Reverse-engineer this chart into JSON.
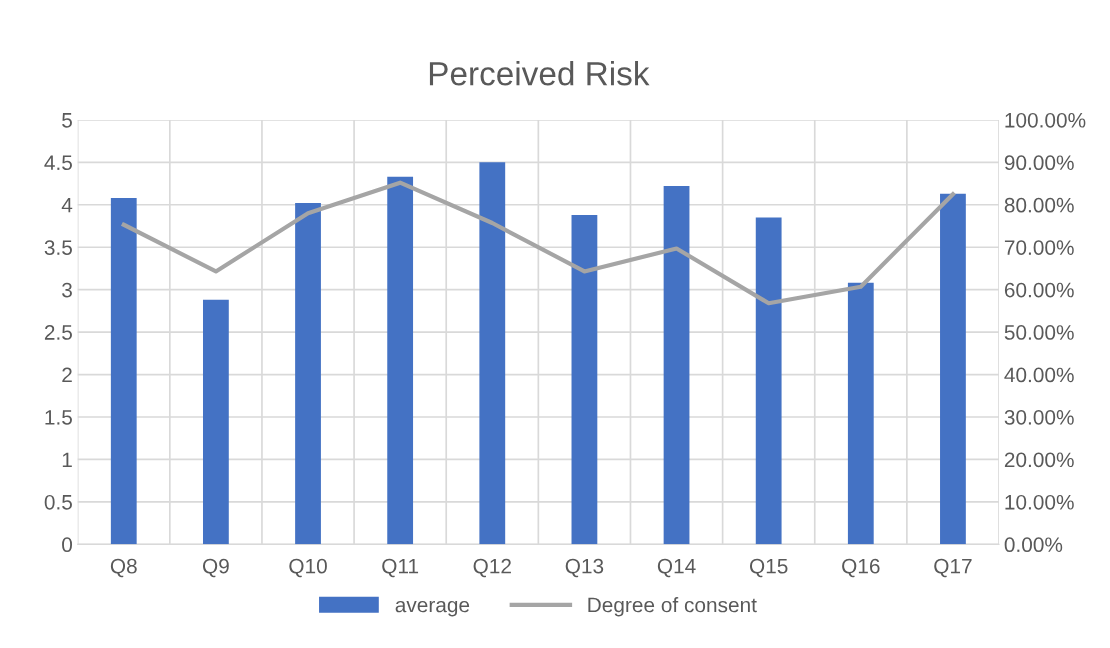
{
  "chart_data": {
    "type": "bar",
    "title": "Perceived Risk",
    "categories": [
      "Q8",
      "Q9",
      "Q10",
      "Q11",
      "Q12",
      "Q13",
      "Q14",
      "Q15",
      "Q16",
      "Q17"
    ],
    "series": [
      {
        "name": "average",
        "color": "#4472c4",
        "values": [
          4.08,
          2.88,
          4.02,
          4.33,
          4.5,
          3.88,
          4.22,
          3.85,
          3.08,
          4.13
        ]
      },
      {
        "name": "Degree of consent",
        "type": "line",
        "axis": "y2",
        "color": "#a5a5a5",
        "values": [
          0.753,
          0.643,
          0.78,
          0.852,
          0.757,
          0.643,
          0.697,
          0.568,
          0.607,
          0.825
        ]
      }
    ],
    "ylim": [
      0,
      5
    ],
    "yticks": [
      0,
      0.5,
      1,
      1.5,
      2,
      2.5,
      3,
      3.5,
      4,
      4.5,
      5
    ],
    "y2lim": [
      0,
      1
    ],
    "y2ticks": [
      {
        "value": 0,
        "label": "0.00%"
      },
      {
        "value": 0.1,
        "label": "10.00%"
      },
      {
        "value": 0.2,
        "label": "20.00%"
      },
      {
        "value": 0.3,
        "label": "30.00%"
      },
      {
        "value": 0.4,
        "label": "40.00%"
      },
      {
        "value": 0.5,
        "label": "50.00%"
      },
      {
        "value": 0.6,
        "label": "60.00%"
      },
      {
        "value": 0.7,
        "label": "70.00%"
      },
      {
        "value": 0.8,
        "label": "80.00%"
      },
      {
        "value": 0.9,
        "label": "90.00%"
      },
      {
        "value": 1,
        "label": "100.00%"
      }
    ],
    "grid": true,
    "legend": "bottom",
    "marker": "none",
    "line_style": "solid"
  }
}
